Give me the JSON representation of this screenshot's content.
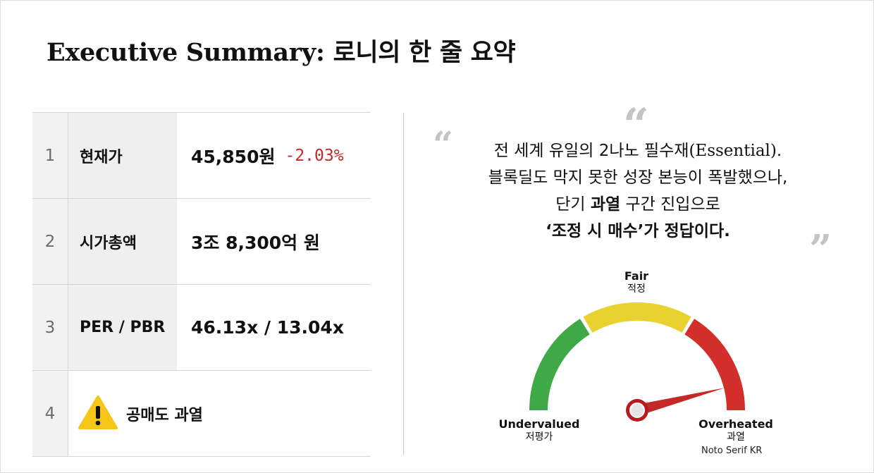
{
  "title": "Executive Summary: 로니의 한 줄 요약",
  "table": {
    "rows": [
      {
        "index": "1",
        "label": "현재가",
        "value": "45,850원",
        "change": "-2.03%"
      },
      {
        "index": "2",
        "label": "시가총액",
        "value": "3조 8,300억 원"
      },
      {
        "index": "3",
        "label": "PER / PBR",
        "value": "46.13x / 13.04x"
      },
      {
        "index": "4",
        "label": "공매도 과열",
        "icon": "warning-icon"
      }
    ]
  },
  "quote": {
    "line1_prefix": "전 세계 유일의 2나노 필수재",
    "line1_serif": "(Essential).",
    "line2": "블록딜도 막지 못한 성장 본능이 폭발했으나,",
    "line3_a": "단기 ",
    "line3_bold": "과열",
    "line3_b": " 구간 진입으로",
    "line4_bold": "‘조정 시 매수’",
    "line4_rest": "가 정답이다.",
    "open_mark": "“",
    "close_mark": "”"
  },
  "gauge": {
    "fair_en": "Fair",
    "fair_ko": "적정",
    "under_en": "Undervalued",
    "under_ko": "저평가",
    "over_en": "Overheated",
    "over_ko": "과열",
    "needle_level": 0.92,
    "colors": {
      "green": "#3fa847",
      "yellow": "#e9d12f",
      "red": "#d22f2a"
    }
  },
  "font_note": "Noto Serif KR",
  "colors": {
    "negative": "#c62828",
    "warning": "#f5c518"
  }
}
